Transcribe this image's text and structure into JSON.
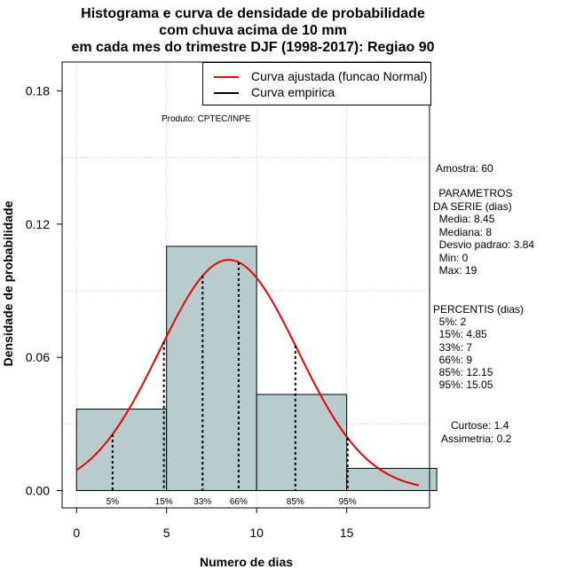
{
  "title_lines": [
    "Histograma e curva de densidade de probabilidade",
    "com chuva acima de 10 mm",
    "em cada mes do trimestre DJF (1998-2017): Regiao 90"
  ],
  "product": "Produto: CPTEC/INPE",
  "legend": {
    "fitted_label": "Curva ajustada (funcao Normal)",
    "empirical_label": "Curva empirica",
    "fitted_color": "#ee0000",
    "empirical_color": "#000000"
  },
  "stats": {
    "sample": "Amostra: 60",
    "params_title_1": " PARAMETROS",
    "params_title_2": "DA SERIE (dias)",
    "media": "  Media: 8.45",
    "mediana": "  Mediana: 8",
    "desvio": "  Desvio padrao: 3.84",
    "min": "  Min: 0",
    "max": "  Max: 19",
    "percentis_title": "PERCENTIS (dias)",
    "p5": "  5%: 2",
    "p15": "  15%: 4.85",
    "p33": "  33%: 7",
    "p66": "  66%: 9",
    "p85": "  85%: 12.15",
    "p95": "  95%: 15.05",
    "curtose": "Curtose: 1.4",
    "assimetria": "Assimetria: 0.2"
  },
  "chart_data": {
    "type": "bar",
    "xlabel": "Numero de dias",
    "ylabel": "Densidade de probabilidade",
    "xlim": [
      -0.8,
      19.6
    ],
    "ylim": [
      -0.0078,
      0.193
    ],
    "xticks": [
      0,
      5,
      10,
      15
    ],
    "yticks": [
      0.0,
      0.06,
      0.12,
      0.18
    ],
    "ytick_labels": [
      "0.00",
      "0.06",
      "0.12",
      "0.18"
    ],
    "grid": true,
    "bar_color": "#b7cccc",
    "bins": [
      {
        "x0": 0,
        "x1": 5,
        "density": 0.0367
      },
      {
        "x0": 5,
        "x1": 10,
        "density": 0.11
      },
      {
        "x0": 10,
        "x1": 15,
        "density": 0.0433
      },
      {
        "x0": 15,
        "x1": 20,
        "density": 0.01
      }
    ],
    "normal_fit": {
      "mean": 8.45,
      "sd": 3.84,
      "x_from": 0,
      "x_to": 19
    },
    "percentiles": [
      {
        "label": "5%",
        "value": 2
      },
      {
        "label": "15%",
        "value": 4.85
      },
      {
        "label": "33%",
        "value": 7
      },
      {
        "label": "66%",
        "value": 9
      },
      {
        "label": "85%",
        "value": 12.15
      },
      {
        "label": "95%",
        "value": 15.05
      }
    ]
  }
}
